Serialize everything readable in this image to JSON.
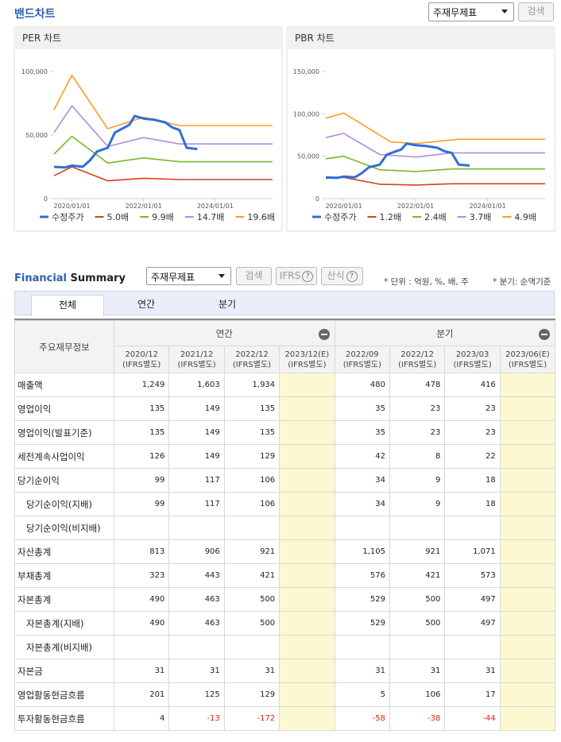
{
  "header": {
    "title": "밴드차트",
    "select": "주재무제표",
    "button": "검색"
  },
  "charts": [
    {
      "type": "line",
      "title": "PER 차트",
      "xlim": [
        2019.5,
        2025.6
      ],
      "ylim": [
        0,
        100000
      ],
      "xticks": [
        {
          "value": 2020,
          "label": "2020/01/01"
        },
        {
          "value": 2022,
          "label": "2022/01/01"
        },
        {
          "value": 2024,
          "label": "2024/01/01"
        }
      ],
      "yticks": [
        0,
        {
          "value": 50000,
          "label": "50,000"
        },
        {
          "value": 100000,
          "label": "100,000"
        }
      ],
      "series": [
        {
          "name": "수정주가",
          "color": "#2e6fd8",
          "x": [
            2019.5,
            2019.8,
            2020.0,
            2020.3,
            2020.5,
            2020.7,
            2021.0,
            2021.2,
            2021.4,
            2021.6,
            2021.75,
            2022.0,
            2022.3,
            2022.6,
            2022.8,
            2023.0,
            2023.2,
            2023.5
          ],
          "values": [
            25000,
            24500,
            26000,
            25000,
            30000,
            37000,
            40000,
            52000,
            55000,
            58000,
            65000,
            63000,
            62000,
            60000,
            56000,
            54000,
            40000,
            39000
          ]
        },
        {
          "name": "5.0배",
          "color": "#d8401a",
          "x": [
            2019.5,
            2020.0,
            2021.0,
            2022.0,
            2023.0,
            2025.6
          ],
          "values": [
            18000,
            25000,
            14000,
            16000,
            15000,
            15000
          ]
        },
        {
          "name": "9.9배",
          "color": "#7ab82a",
          "x": [
            2019.5,
            2020.0,
            2021.0,
            2022.0,
            2023.0,
            2025.6
          ],
          "values": [
            35000,
            49000,
            28000,
            32000,
            29000,
            29000
          ]
        },
        {
          "name": "14.7배",
          "color": "#b48be0",
          "x": [
            2019.5,
            2020.0,
            2021.0,
            2022.0,
            2023.0,
            2025.6
          ],
          "values": [
            52000,
            73000,
            41000,
            48000,
            43000,
            43000
          ]
        },
        {
          "name": "19.6배",
          "color": "#f5a020",
          "x": [
            2019.5,
            2020.0,
            2021.0,
            2022.0,
            2023.0,
            2025.6
          ],
          "values": [
            70000,
            97000,
            55000,
            64000,
            57500,
            57500
          ]
        }
      ]
    },
    {
      "type": "line",
      "title": "PBR 차트",
      "xlim": [
        2019.5,
        2025.6
      ],
      "ylim": [
        0,
        150000
      ],
      "xticks": [
        {
          "value": 2020,
          "label": "2020/01/01"
        },
        {
          "value": 2022,
          "label": "2022/01/01"
        },
        {
          "value": 2024,
          "label": "2024/01/01"
        }
      ],
      "yticks": [
        0,
        {
          "value": 50000,
          "label": "50,000"
        },
        {
          "value": 100000,
          "label": "100,000"
        },
        {
          "value": 150000,
          "label": "150,000"
        }
      ],
      "series": [
        {
          "name": "수정주가",
          "color": "#2e6fd8",
          "x": [
            2019.5,
            2019.8,
            2020.0,
            2020.3,
            2020.5,
            2020.7,
            2021.0,
            2021.2,
            2021.4,
            2021.6,
            2021.75,
            2022.0,
            2022.3,
            2022.6,
            2022.8,
            2023.0,
            2023.2,
            2023.5
          ],
          "values": [
            25000,
            24500,
            26000,
            25000,
            30000,
            37000,
            40000,
            52000,
            55000,
            58000,
            65000,
            63000,
            62000,
            60000,
            56000,
            54000,
            40000,
            39000
          ]
        },
        {
          "name": "1.2배",
          "color": "#d8401a",
          "x": [
            2019.5,
            2020.0,
            2021.0,
            2022.0,
            2023.0,
            2025.6
          ],
          "values": [
            24000,
            25000,
            17000,
            16000,
            17500,
            17500
          ]
        },
        {
          "name": "2.4배",
          "color": "#7ab82a",
          "x": [
            2019.5,
            2020.0,
            2021.0,
            2022.0,
            2023.0,
            2025.6
          ],
          "values": [
            47000,
            50000,
            34000,
            32000,
            35000,
            35000
          ]
        },
        {
          "name": "3.7배",
          "color": "#b48be0",
          "x": [
            2019.5,
            2020.0,
            2021.0,
            2022.0,
            2023.0,
            2025.6
          ],
          "values": [
            72000,
            77000,
            52000,
            49000,
            54000,
            54000
          ]
        },
        {
          "name": "4.9배",
          "color": "#f5a020",
          "x": [
            2019.5,
            2020.0,
            2021.3,
            2022.0,
            2023.2,
            2025.6
          ],
          "values": [
            95000,
            101000,
            67000,
            65000,
            70000,
            70000
          ]
        }
      ]
    }
  ],
  "summary": {
    "title": [
      "Financial",
      "Summary"
    ],
    "select": "주재무제표",
    "buttons": [
      "검색",
      "IFRS",
      "산식"
    ],
    "notes": [
      "* 단위 : 억원, %, 배, 주",
      "* 분기: 순액기준"
    ],
    "tabs": [
      "전체",
      "연간",
      "분기"
    ],
    "table": {
      "corner": "주요재무정보",
      "groups": [
        "연간",
        "분기"
      ],
      "columns": [
        {
          "period": "2020/12",
          "basis": "(IFRS별도)"
        },
        {
          "period": "2021/12",
          "basis": "(IFRS별도)"
        },
        {
          "period": "2022/12",
          "basis": "(IFRS별도)"
        },
        {
          "period": "2023/12(E)",
          "basis": "(IFRS별도)"
        },
        {
          "period": "2022/09",
          "basis": "(IFRS별도)"
        },
        {
          "period": "2022/12",
          "basis": "(IFRS별도)"
        },
        {
          "period": "2023/03",
          "basis": "(IFRS별도)"
        },
        {
          "period": "2023/06(E)",
          "basis": "(IFRS별도)"
        }
      ],
      "rows": [
        {
          "label": "매출액",
          "values": [
            "1,249",
            "1,603",
            "1,934",
            null,
            "480",
            "478",
            "416",
            null
          ]
        },
        {
          "label": "영업이익",
          "values": [
            "135",
            "149",
            "135",
            null,
            "35",
            "23",
            "23",
            null
          ]
        },
        {
          "label": "영업이익(발표기준)",
          "values": [
            "135",
            "149",
            "135",
            null,
            "35",
            "23",
            "23",
            null
          ]
        },
        {
          "label": "세전계속사업이익",
          "values": [
            "126",
            "149",
            "129",
            null,
            "42",
            "8",
            "22",
            null
          ]
        },
        {
          "label": "당기순이익",
          "values": [
            "99",
            "117",
            "106",
            null,
            "34",
            "9",
            "18",
            null
          ],
          "sub": [
            {
              "label": "당기순이익(지배)",
              "values": [
                "99",
                "117",
                "106",
                null,
                "34",
                "9",
                "18",
                null
              ]
            },
            {
              "label": "당기순이익(비지배)",
              "values": [
                null,
                null,
                null,
                null,
                null,
                null,
                null,
                null
              ]
            }
          ]
        },
        {
          "label": "자산총계",
          "values": [
            "813",
            "906",
            "921",
            null,
            "1,105",
            "921",
            "1,071",
            null
          ]
        },
        {
          "label": "부채총계",
          "values": [
            "323",
            "443",
            "421",
            null,
            "576",
            "421",
            "573",
            null
          ]
        },
        {
          "label": "자본총계",
          "values": [
            "490",
            "463",
            "500",
            null,
            "529",
            "500",
            "497",
            null
          ],
          "sub": [
            {
              "label": "자본총계(지배)",
              "values": [
                "490",
                "463",
                "500",
                null,
                "529",
                "500",
                "497",
                null
              ]
            },
            {
              "label": "자본총계(비지배)",
              "values": [
                null,
                null,
                null,
                null,
                null,
                null,
                null,
                null
              ]
            }
          ]
        },
        {
          "label": "자본금",
          "values": [
            "31",
            "31",
            "31",
            null,
            "31",
            "31",
            "31",
            null
          ]
        },
        {
          "label": "영업활동현금흐름",
          "values": [
            "201",
            "125",
            "129",
            null,
            "5",
            "106",
            "17",
            null
          ]
        },
        {
          "label": "투자활동현금흐름",
          "values": [
            "4",
            "-13",
            "-172",
            null,
            "-58",
            "-38",
            "-44",
            null
          ]
        }
      ]
    }
  }
}
